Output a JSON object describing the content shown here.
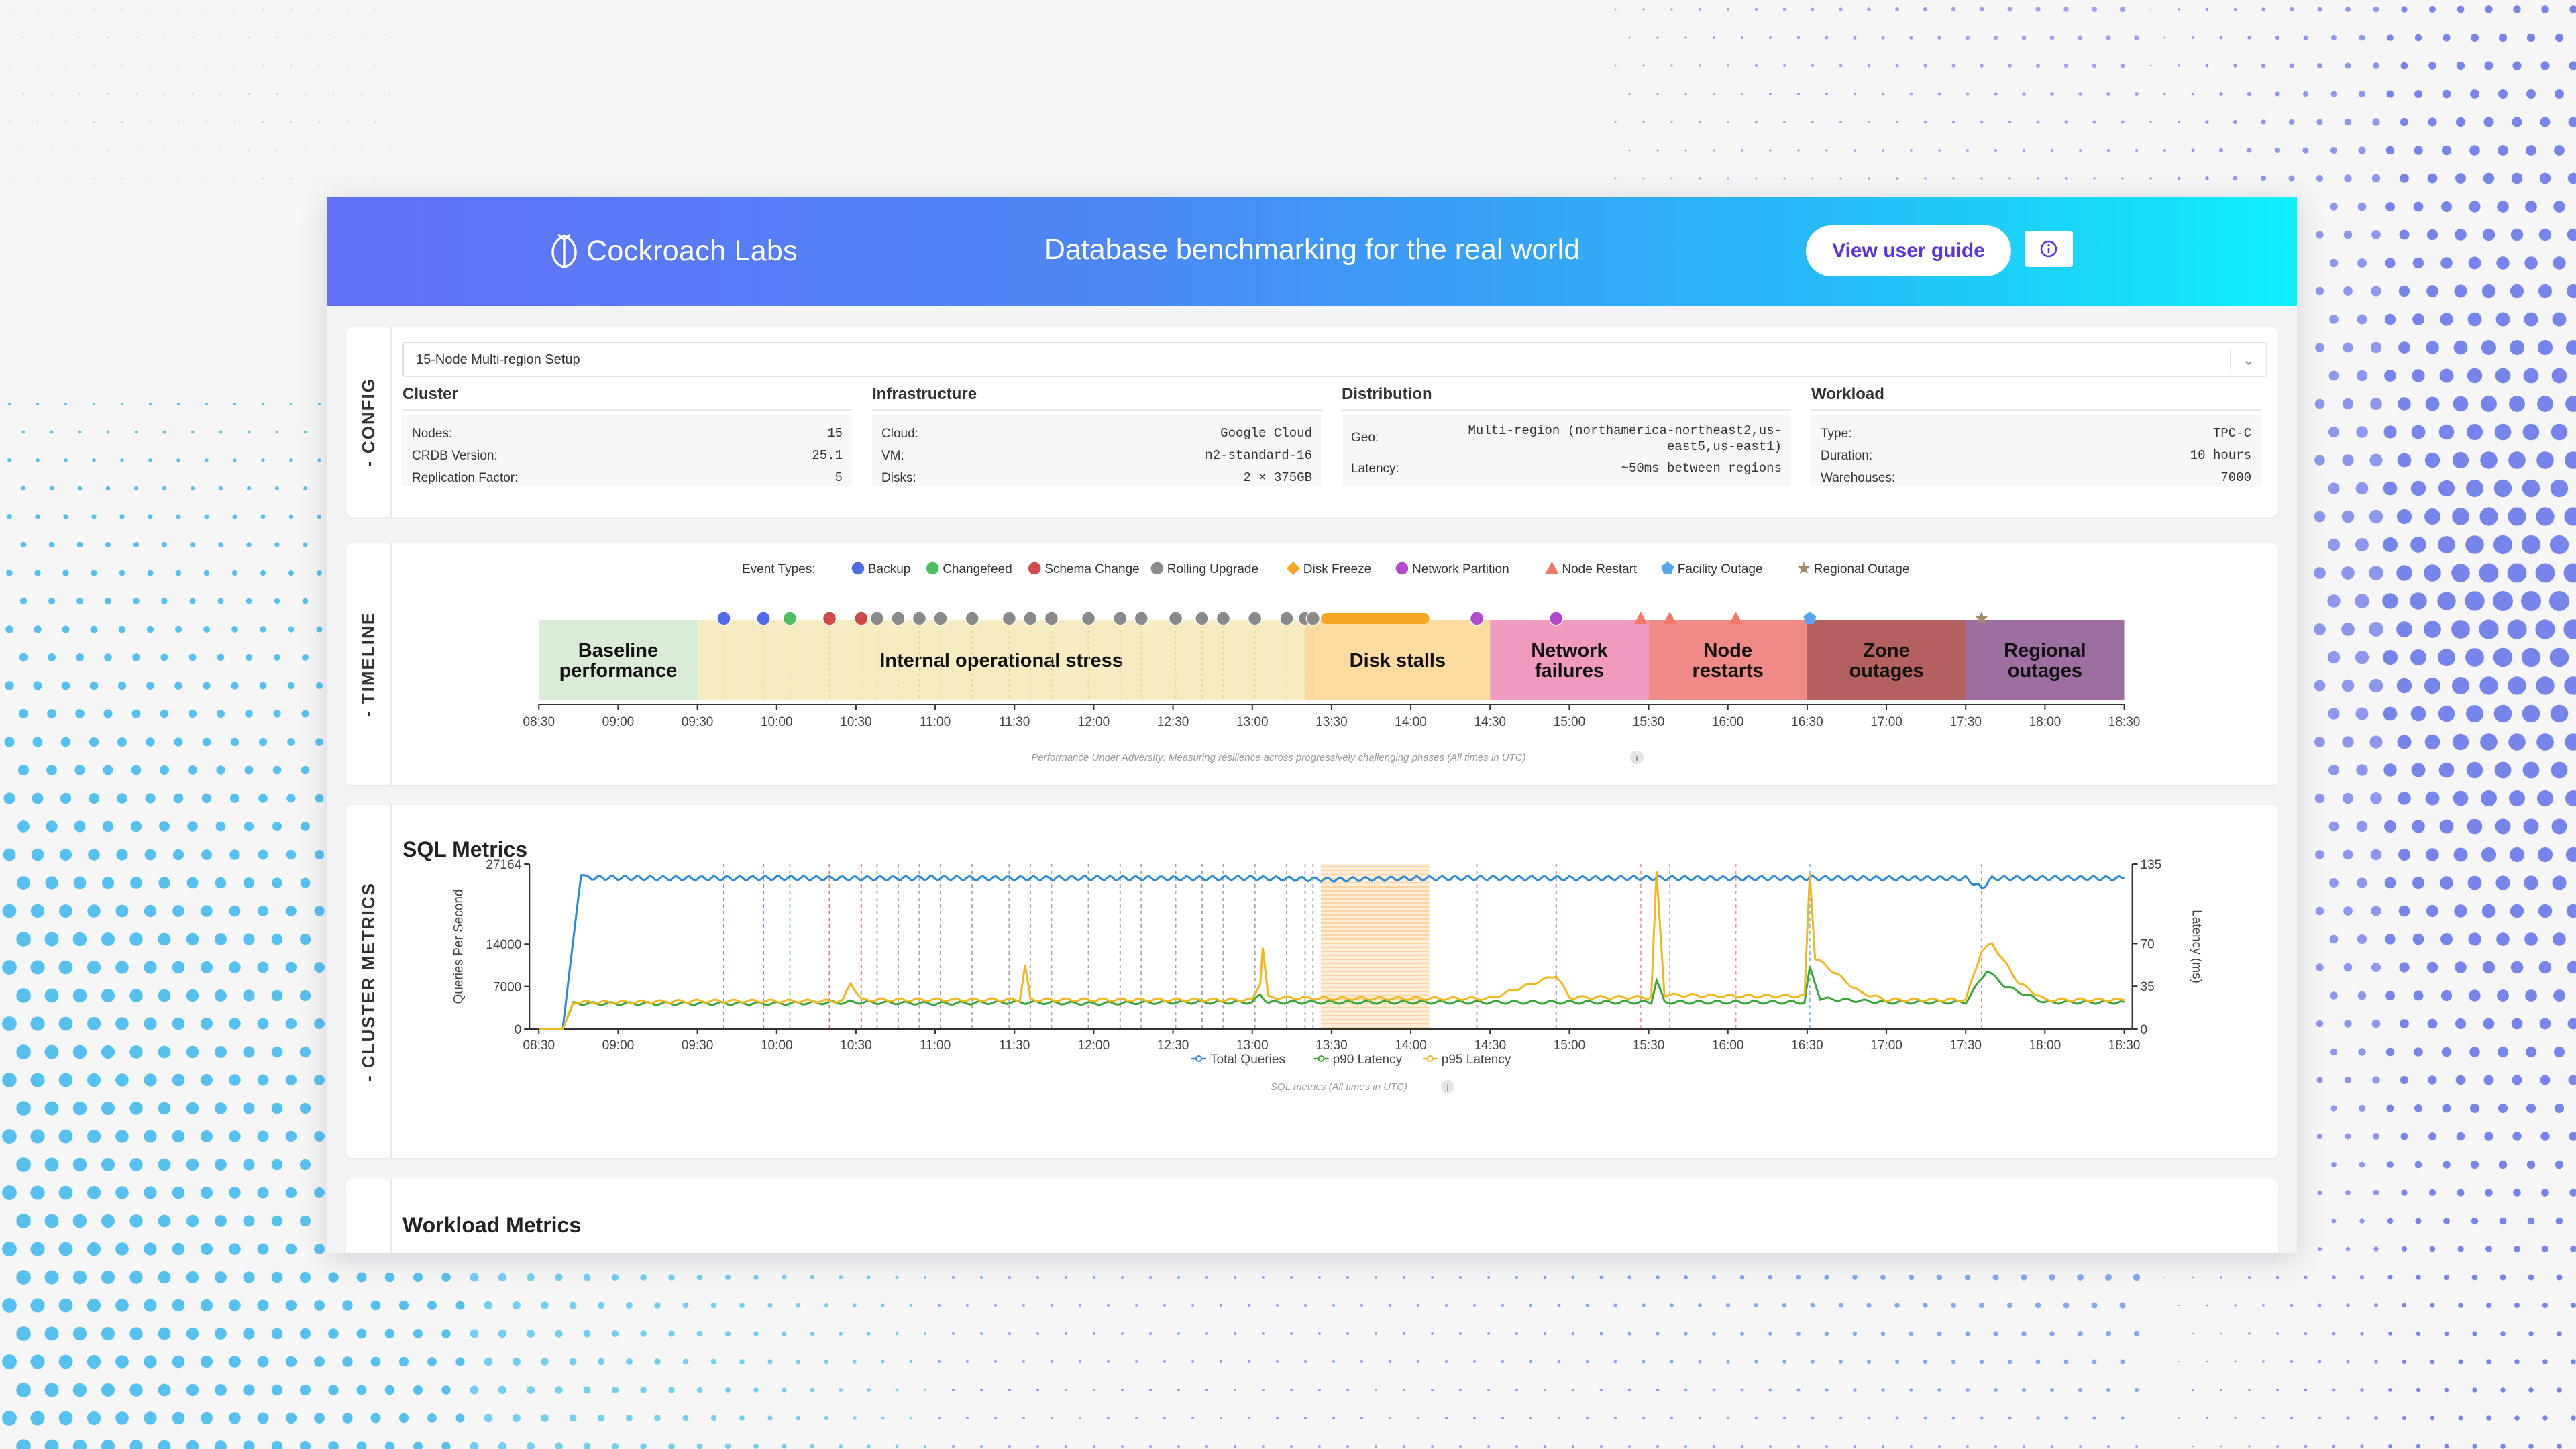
{
  "header": {
    "logo_text": "Cockroach Labs",
    "title": "Database benchmarking for the real world",
    "guide_button": "View user guide"
  },
  "config": {
    "tab_label": "- CONFIG",
    "setup_selected": "15-Node Multi-region Setup",
    "cluster": {
      "heading": "Cluster",
      "rows": [
        {
          "label": "Nodes:",
          "value": "15"
        },
        {
          "label": "CRDB Version:",
          "value": "25.1"
        },
        {
          "label": "Replication Factor:",
          "value": "5"
        }
      ]
    },
    "infrastructure": {
      "heading": "Infrastructure",
      "rows": [
        {
          "label": "Cloud:",
          "value": "Google Cloud"
        },
        {
          "label": "VM:",
          "value": "n2-standard-16"
        },
        {
          "label": "Disks:",
          "value": "2 × 375GB"
        }
      ]
    },
    "distribution": {
      "heading": "Distribution",
      "geo_label": "Geo:",
      "geo_line1": "Multi-region (northamerica-northeast2,us-",
      "geo_line2": "east5,us-east1)",
      "latency_label": "Latency:",
      "latency_value": "~50ms between regions"
    },
    "workload": {
      "heading": "Workload",
      "rows": [
        {
          "label": "Type:",
          "value": "TPC-C"
        },
        {
          "label": "Duration:",
          "value": "10 hours"
        },
        {
          "label": "Warehouses:",
          "value": "7000"
        }
      ]
    }
  },
  "timeline": {
    "tab_label": "- TIMELINE",
    "legend_title": "Event Types:",
    "event_types": [
      {
        "name": "Backup",
        "shape": "circle",
        "color": "#4f6bea"
      },
      {
        "name": "Changefeed",
        "shape": "circle",
        "color": "#4fbe60"
      },
      {
        "name": "Schema Change",
        "shape": "circle",
        "color": "#d04a4a"
      },
      {
        "name": "Rolling Upgrade",
        "shape": "circle",
        "color": "#8a8a8a"
      },
      {
        "name": "Disk Freeze",
        "shape": "diamond",
        "color": "#f5a623"
      },
      {
        "name": "Network Partition",
        "shape": "circle",
        "color": "#b04cc9"
      },
      {
        "name": "Node Restart",
        "shape": "triangle",
        "color": "#f07a6a"
      },
      {
        "name": "Facility Outage",
        "shape": "pentagon",
        "color": "#58a6f0"
      },
      {
        "name": "Regional Outage",
        "shape": "star",
        "color": "#a58a6a"
      }
    ],
    "phases": [
      {
        "label": [
          "Baseline",
          "performance"
        ],
        "start": "08:30",
        "end": "09:30",
        "color": "#d9ecd6"
      },
      {
        "label": [
          "Internal operational stress"
        ],
        "start": "09:30",
        "end": "13:20",
        "color": "#f7ebc1"
      },
      {
        "label": [
          "Disk stalls"
        ],
        "start": "13:20",
        "end": "14:30",
        "color": "#fcdba0"
      },
      {
        "label": [
          "Network",
          "failures"
        ],
        "start": "14:30",
        "end": "15:30",
        "color": "#f19ac0"
      },
      {
        "label": [
          "Node",
          "restarts"
        ],
        "start": "15:30",
        "end": "16:30",
        "color": "#f08a86"
      },
      {
        "label": [
          "Zone",
          "outages"
        ],
        "start": "16:30",
        "end": "17:30",
        "color": "#b46060"
      },
      {
        "label": [
          "Regional",
          "outages"
        ],
        "start": "17:30",
        "end": "18:30",
        "color": "#9c6fa0"
      }
    ],
    "events": [
      {
        "type": "Backup",
        "time": "09:40"
      },
      {
        "type": "Backup",
        "time": "09:55"
      },
      {
        "type": "Changefeed",
        "time": "10:05"
      },
      {
        "type": "Schema Change",
        "time": "10:20"
      },
      {
        "type": "Schema Change",
        "time": "10:32"
      },
      {
        "type": "Rolling Upgrade",
        "time": "10:38"
      },
      {
        "type": "Rolling Upgrade",
        "time": "10:46"
      },
      {
        "type": "Rolling Upgrade",
        "time": "10:54"
      },
      {
        "type": "Rolling Upgrade",
        "time": "11:02"
      },
      {
        "type": "Rolling Upgrade",
        "time": "11:14"
      },
      {
        "type": "Rolling Upgrade",
        "time": "11:28"
      },
      {
        "type": "Rolling Upgrade",
        "time": "11:36"
      },
      {
        "type": "Rolling Upgrade",
        "time": "11:44"
      },
      {
        "type": "Rolling Upgrade",
        "time": "11:58"
      },
      {
        "type": "Rolling Upgrade",
        "time": "12:10"
      },
      {
        "type": "Rolling Upgrade",
        "time": "12:18"
      },
      {
        "type": "Rolling Upgrade",
        "time": "12:31"
      },
      {
        "type": "Rolling Upgrade",
        "time": "12:41"
      },
      {
        "type": "Rolling Upgrade",
        "time": "12:49"
      },
      {
        "type": "Rolling Upgrade",
        "time": "13:01"
      },
      {
        "type": "Rolling Upgrade",
        "time": "13:13"
      },
      {
        "type": "Rolling Upgrade",
        "time": "13:20"
      },
      {
        "type": "Rolling Upgrade",
        "time": "13:23"
      },
      {
        "type": "Network Partition",
        "time": "14:25"
      },
      {
        "type": "Network Partition",
        "time": "14:55"
      },
      {
        "type": "Node Restart",
        "time": "15:27"
      },
      {
        "type": "Node Restart",
        "time": "15:38"
      },
      {
        "type": "Node Restart",
        "time": "16:03"
      },
      {
        "type": "Facility Outage",
        "time": "16:31"
      },
      {
        "type": "Regional Outage",
        "time": "17:36"
      }
    ],
    "disk_freeze": {
      "start": "13:26",
      "end": "14:07"
    },
    "time_ticks": [
      "08:30",
      "09:00",
      "09:30",
      "10:00",
      "10:30",
      "11:00",
      "11:30",
      "12:00",
      "12:30",
      "13:00",
      "13:30",
      "14:00",
      "14:30",
      "15:00",
      "15:30",
      "16:00",
      "16:30",
      "17:00",
      "17:30",
      "18:00",
      "18:30"
    ],
    "caption": "Performance Under Adversity: Measuring resilience across progressively challenging phases (All times in UTC)"
  },
  "metrics": {
    "tab_label": "- CLUSTER METRICS",
    "section_title": "SQL Metrics",
    "caption": "SQL metrics (All times in UTC)",
    "workload_title": "Workload Metrics"
  },
  "chart_data": {
    "type": "line",
    "xlabel": "",
    "ylabel": "Queries Per Second",
    "y2label": "Latency (ms)",
    "x_ticks": [
      "08:30",
      "09:00",
      "09:30",
      "10:00",
      "10:30",
      "11:00",
      "11:30",
      "12:00",
      "12:30",
      "13:00",
      "13:30",
      "14:00",
      "14:30",
      "15:00",
      "15:30",
      "16:00",
      "16:30",
      "17:00",
      "17:30",
      "18:00",
      "18:30"
    ],
    "y_ticks": [
      0,
      7000,
      14000,
      27164
    ],
    "y2_ticks": [
      0,
      35,
      70,
      135
    ],
    "ylim": [
      0,
      27164
    ],
    "y2lim": [
      0,
      135
    ],
    "series": [
      {
        "name": "Total Queries",
        "axis": "left",
        "color": "#2b8ad8",
        "x": [
          "08:30",
          "08:39",
          "08:46",
          "08:48",
          "09:30",
          "10:00",
          "10:30",
          "11:00",
          "11:30",
          "12:00",
          "12:30",
          "13:00",
          "13:30",
          "14:00",
          "14:30",
          "15:00",
          "15:30",
          "16:00",
          "16:30",
          "17:00",
          "17:30",
          "17:36",
          "17:40",
          "18:00",
          "18:30"
        ],
        "values": [
          0,
          0,
          25600,
          24900,
          24800,
          24850,
          24800,
          24850,
          24800,
          24850,
          24800,
          24850,
          24600,
          24800,
          24850,
          24800,
          24850,
          24800,
          24850,
          24800,
          24800,
          23200,
          24800,
          24850,
          24800
        ]
      },
      {
        "name": "p90 Latency",
        "axis": "right",
        "color": "#3aa63a",
        "x": [
          "08:30",
          "08:39",
          "08:43",
          "09:00",
          "09:30",
          "10:00",
          "10:30",
          "11:00",
          "11:30",
          "12:00",
          "12:30",
          "13:00",
          "13:03",
          "13:06",
          "13:30",
          "14:00",
          "14:30",
          "15:00",
          "15:31",
          "15:33",
          "15:36",
          "16:00",
          "16:29",
          "16:31",
          "16:35",
          "17:00",
          "17:30",
          "17:38",
          "17:45",
          "18:00",
          "18:30"
        ],
        "values": [
          0,
          0,
          21,
          21,
          21,
          21,
          22,
          21,
          22,
          21,
          22,
          22,
          28,
          22,
          22,
          22,
          22,
          22,
          22,
          40,
          22,
          22,
          22,
          50,
          25,
          22,
          22,
          48,
          35,
          22,
          22
        ]
      },
      {
        "name": "p95 Latency",
        "axis": "right",
        "color": "#f0b820",
        "x": [
          "08:30",
          "08:39",
          "08:43",
          "09:00",
          "09:30",
          "10:00",
          "10:25",
          "10:28",
          "10:32",
          "11:00",
          "11:32",
          "11:34",
          "11:36",
          "12:00",
          "13:00",
          "13:03",
          "13:04",
          "13:06",
          "13:30",
          "14:00",
          "14:30",
          "14:55",
          "15:00",
          "15:31",
          "15:33",
          "15:36",
          "16:00",
          "16:29",
          "16:31",
          "16:33",
          "16:37",
          "16:50",
          "17:00",
          "17:30",
          "17:36",
          "17:40",
          "17:50",
          "18:00",
          "18:30"
        ],
        "values": [
          0,
          0,
          22,
          22,
          23,
          23,
          23,
          38,
          24,
          24,
          24,
          52,
          24,
          24,
          24,
          38,
          67,
          26,
          25,
          25,
          25,
          44,
          26,
          26,
          128,
          28,
          27,
          27,
          128,
          58,
          52,
          30,
          24,
          24,
          64,
          70,
          38,
          24,
          24
        ]
      }
    ]
  }
}
